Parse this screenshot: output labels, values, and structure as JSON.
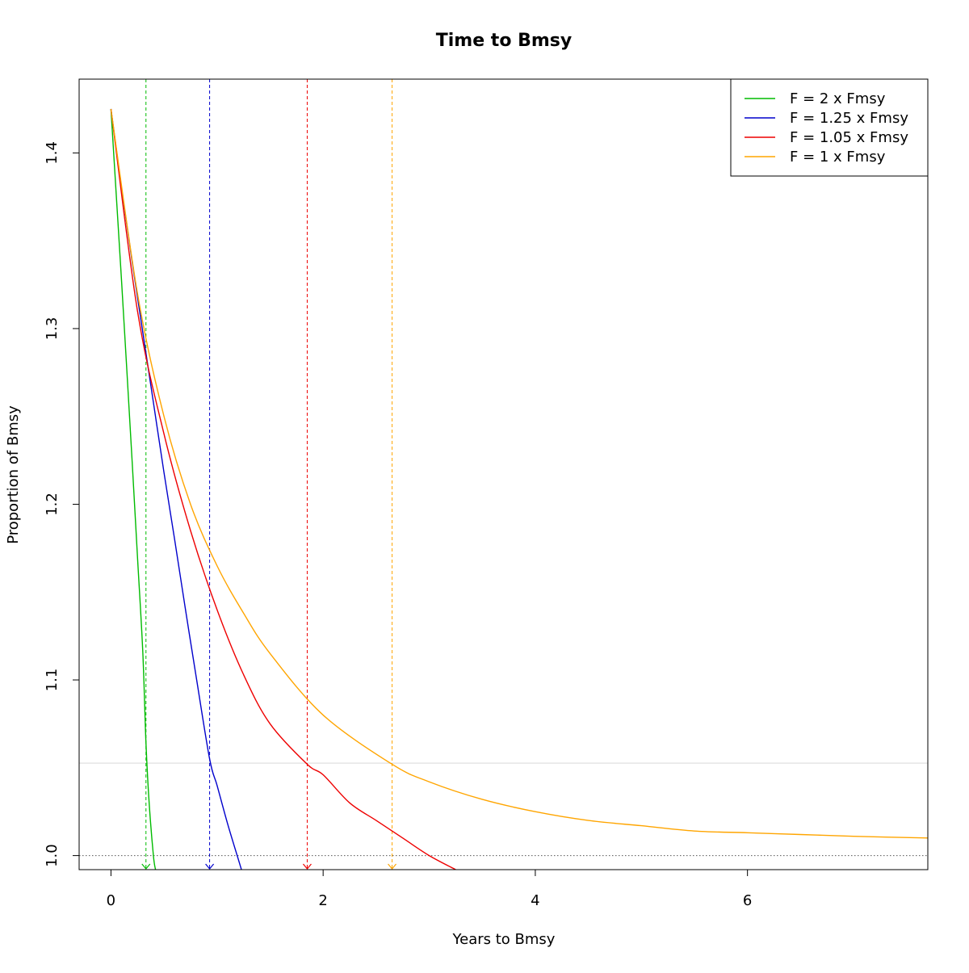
{
  "chart_data": {
    "type": "line",
    "title": "Time to Bmsy",
    "xlabel": "Years to Bmsy",
    "ylabel": "Proportion of Bmsy",
    "xlim": [
      -0.3,
      7.7
    ],
    "ylim": [
      0.992,
      1.442
    ],
    "x_ticks": [
      0,
      2,
      4,
      6
    ],
    "y_ticks": [
      1.0,
      1.1,
      1.2,
      1.3,
      1.4
    ],
    "x_tick_labels": [
      "0",
      "2",
      "4",
      "6"
    ],
    "y_tick_labels": [
      "1.0",
      "1.1",
      "1.2",
      "1.3",
      "1.4"
    ],
    "grid": false,
    "legend_position": "top-right",
    "reference_lines": {
      "dotted_h": 1.0,
      "dotted_h_color": "#555555",
      "light_h": 1.0526,
      "light_h_color": "#e4e4e4"
    },
    "series": [
      {
        "name": "F = 2 x Fmsy",
        "color": "#00bb00",
        "marker_x": 0.33,
        "points": [
          [
            0,
            1.425
          ],
          [
            0.05,
            1.376
          ],
          [
            0.1,
            1.327
          ],
          [
            0.15,
            1.276
          ],
          [
            0.2,
            1.224
          ],
          [
            0.25,
            1.17
          ],
          [
            0.3,
            1.116
          ],
          [
            0.33,
            1.064
          ],
          [
            0.36,
            1.03
          ],
          [
            0.4,
            1.0
          ],
          [
            0.42,
            0.992
          ]
        ]
      },
      {
        "name": "F = 1.25 x Fmsy",
        "color": "#0000cc",
        "marker_x": 0.93,
        "points": [
          [
            0,
            1.425
          ],
          [
            0.1,
            1.38
          ],
          [
            0.2,
            1.338
          ],
          [
            0.3,
            1.298
          ],
          [
            0.4,
            1.258
          ],
          [
            0.5,
            1.218
          ],
          [
            0.6,
            1.18
          ],
          [
            0.7,
            1.141
          ],
          [
            0.8,
            1.103
          ],
          [
            0.93,
            1.055
          ],
          [
            1.0,
            1.04
          ],
          [
            1.1,
            1.018
          ],
          [
            1.2,
            0.998
          ],
          [
            1.23,
            0.992
          ]
        ]
      },
      {
        "name": "F = 1.05 x Fmsy",
        "color": "#ee0000",
        "marker_x": 1.85,
        "points": [
          [
            0,
            1.425
          ],
          [
            0.25,
            1.31
          ],
          [
            0.5,
            1.24
          ],
          [
            0.75,
            1.185
          ],
          [
            1.0,
            1.14
          ],
          [
            1.25,
            1.103
          ],
          [
            1.5,
            1.075
          ],
          [
            1.85,
            1.052
          ],
          [
            2.0,
            1.046
          ],
          [
            2.25,
            1.03
          ],
          [
            2.5,
            1.02
          ],
          [
            2.75,
            1.01
          ],
          [
            3.0,
            1.0
          ],
          [
            3.25,
            0.992
          ]
        ]
      },
      {
        "name": "F = 1 x Fmsy",
        "color": "#ffa500",
        "marker_x": 2.65,
        "points": [
          [
            0,
            1.425
          ],
          [
            0.25,
            1.32
          ],
          [
            0.5,
            1.25
          ],
          [
            0.75,
            1.2
          ],
          [
            1.0,
            1.165
          ],
          [
            1.25,
            1.138
          ],
          [
            1.5,
            1.115
          ],
          [
            2.0,
            1.08
          ],
          [
            2.65,
            1.052
          ],
          [
            3.0,
            1.042
          ],
          [
            3.5,
            1.032
          ],
          [
            4.0,
            1.025
          ],
          [
            4.5,
            1.02
          ],
          [
            5.0,
            1.017
          ],
          [
            5.5,
            1.014
          ],
          [
            6.0,
            1.013
          ],
          [
            6.5,
            1.012
          ],
          [
            7.0,
            1.011
          ],
          [
            7.7,
            1.01
          ]
        ]
      }
    ]
  }
}
